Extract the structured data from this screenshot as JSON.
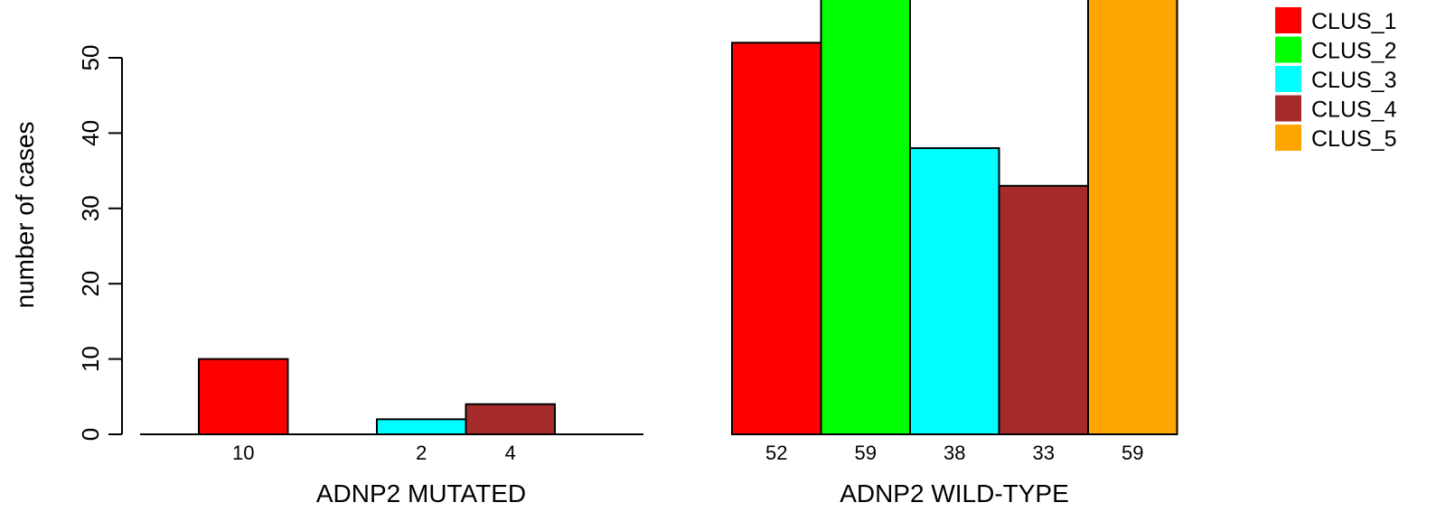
{
  "chart_data": {
    "type": "bar",
    "ylabel": "number of cases",
    "yticks": [
      0,
      10,
      20,
      30,
      40,
      50
    ],
    "series": [
      {
        "name": "CLUS_1",
        "color": "#ff0000"
      },
      {
        "name": "CLUS_2",
        "color": "#00ff00"
      },
      {
        "name": "CLUS_3",
        "color": "#00ffff"
      },
      {
        "name": "CLUS_4",
        "color": "#a52a2a"
      },
      {
        "name": "CLUS_5",
        "color": "#ffa500"
      }
    ],
    "groups": [
      {
        "label": "ADNP2 MUTATED",
        "values": [
          10,
          0,
          2,
          4,
          0
        ],
        "value_labels": [
          "10",
          "",
          "2",
          "4",
          ""
        ]
      },
      {
        "label": "ADNP2 WILD-TYPE",
        "values": [
          52,
          59,
          38,
          33,
          59
        ],
        "value_labels": [
          "52",
          "59",
          "38",
          "33",
          "59"
        ]
      }
    ],
    "legend": {
      "position": "top-right",
      "entries": [
        "CLUS_1",
        "CLUS_2",
        "CLUS_3",
        "CLUS_4",
        "CLUS_5"
      ]
    }
  }
}
